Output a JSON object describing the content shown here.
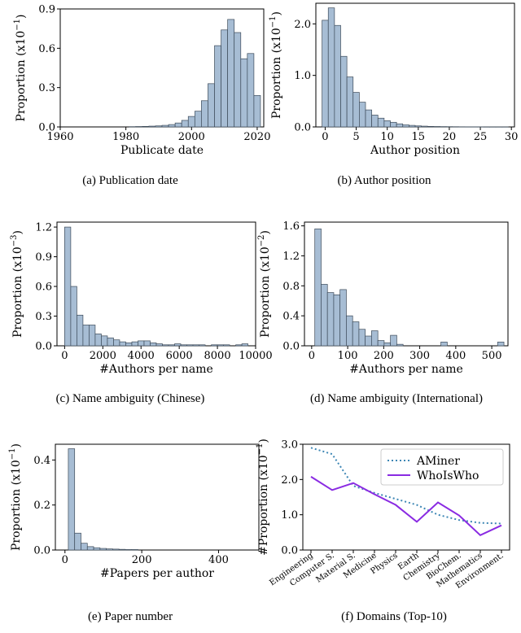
{
  "colors": {
    "bar_fill": "#a7bdd4",
    "bar_stroke": "#3c4a59",
    "aminer": "#3e87b5",
    "whoiswho": "#8a2be2"
  },
  "chart_data": [
    {
      "id": "a",
      "type": "bar",
      "caption": "(a)  Publication date",
      "xlabel": "Publicate date",
      "ylabel": "Proportion (x10",
      "ylabel_exp": "−1",
      "xlim": [
        1960,
        2022
      ],
      "ylim": [
        0,
        0.9
      ],
      "xticks": [
        1960,
        1980,
        2000,
        2020
      ],
      "yticks": [
        "0.0",
        "0.3",
        "0.6",
        "0.9"
      ],
      "bin_width": 2,
      "x": [
        1982,
        1984,
        1986,
        1988,
        1990,
        1992,
        1994,
        1996,
        1998,
        2000,
        2002,
        2004,
        2006,
        2008,
        2010,
        2012,
        2014,
        2016,
        2018,
        2020
      ],
      "values": [
        0.002,
        0.003,
        0.004,
        0.006,
        0.008,
        0.012,
        0.018,
        0.03,
        0.05,
        0.08,
        0.12,
        0.2,
        0.33,
        0.62,
        0.74,
        0.82,
        0.72,
        0.52,
        0.56,
        0.24
      ]
    },
    {
      "id": "b",
      "type": "bar",
      "caption": "(b)  Author position",
      "xlabel": "Author position",
      "ylabel": "Proportion (x10",
      "ylabel_exp": "−1",
      "xlim": [
        -1.5,
        30.5
      ],
      "ylim": [
        0,
        2.4
      ],
      "xticks": [
        0,
        5,
        10,
        15,
        20,
        25,
        30
      ],
      "yticks": [
        "0.0",
        "1.0",
        "2.0"
      ],
      "bin_width": 1,
      "x": [
        0,
        1,
        2,
        3,
        4,
        5,
        6,
        7,
        8,
        9,
        10,
        11,
        12,
        13,
        14,
        15,
        16,
        17,
        18,
        19,
        20,
        21,
        22,
        23,
        24,
        25,
        26,
        27,
        28,
        29
      ],
      "values": [
        2.07,
        2.31,
        1.97,
        1.37,
        0.97,
        0.67,
        0.48,
        0.33,
        0.23,
        0.17,
        0.12,
        0.09,
        0.06,
        0.04,
        0.03,
        0.02,
        0.015,
        0.01,
        0.008,
        0.006,
        0.005,
        0.004,
        0.003,
        0.002,
        0.002,
        0.002,
        0.001,
        0.001,
        0.001,
        0.001
      ]
    },
    {
      "id": "c",
      "type": "bar",
      "caption": "(c)  Name ambiguity (Chinese)",
      "xlabel": "#Authors per name",
      "ylabel": "Proportion (x10",
      "ylabel_exp": "−3",
      "xlim": [
        -400,
        10000
      ],
      "ylim": [
        0,
        1.25
      ],
      "xticks": [
        0,
        2000,
        4000,
        6000,
        8000,
        10000
      ],
      "yticks": [
        "0.0",
        "0.3",
        "0.6",
        "0.9",
        "1.2"
      ],
      "bin_width": 320,
      "x": [
        160,
        480,
        800,
        1120,
        1440,
        1760,
        2080,
        2400,
        2720,
        3040,
        3360,
        3680,
        4000,
        4320,
        4640,
        4960,
        5280,
        5600,
        5920,
        6240,
        6560,
        6880,
        7200,
        7520,
        7840,
        8160,
        8480,
        8800,
        9120,
        9440
      ],
      "values": [
        1.2,
        0.6,
        0.31,
        0.21,
        0.21,
        0.12,
        0.1,
        0.08,
        0.06,
        0.04,
        0.03,
        0.04,
        0.05,
        0.05,
        0.03,
        0.02,
        0.01,
        0.01,
        0.02,
        0.01,
        0.01,
        0.01,
        0.01,
        0.0,
        0.01,
        0.01,
        0.01,
        0.0,
        0.01,
        0.02
      ]
    },
    {
      "id": "d",
      "type": "bar",
      "caption": "(d)  Name ambiguity (International)",
      "xlabel": "#Authors per name",
      "ylabel": "Proportion (x10",
      "ylabel_exp": "−2",
      "xlim": [
        -20,
        545
      ],
      "ylim": [
        0,
        1.65
      ],
      "xticks": [
        0,
        100,
        200,
        300,
        400,
        500
      ],
      "yticks": [
        "0.0",
        "0.4",
        "0.8",
        "1.2",
        "1.6"
      ],
      "bin_width": 17.6,
      "x": [
        17.5,
        35,
        52.5,
        70,
        87.5,
        105,
        122.5,
        140,
        157.5,
        175,
        192.5,
        210,
        227.5,
        245,
        262.5,
        280,
        297.5,
        315,
        332.5,
        350,
        367.5,
        385,
        402.5,
        420,
        437.5,
        455,
        472.5,
        490,
        507.5,
        525
      ],
      "values": [
        1.56,
        0.82,
        0.71,
        0.68,
        0.75,
        0.4,
        0.32,
        0.22,
        0.13,
        0.2,
        0.07,
        0.04,
        0.14,
        0.02,
        0.0,
        0.0,
        0.0,
        0.0,
        0.0,
        0.0,
        0.05,
        0.0,
        0.0,
        0.0,
        0.0,
        0.0,
        0.0,
        0.0,
        0.0,
        0.05
      ]
    },
    {
      "id": "e",
      "type": "bar",
      "caption": "(e)  Paper number",
      "xlabel": "#Papers per author",
      "ylabel": "Proportion (x10",
      "ylabel_exp": "−1",
      "xlim": [
        -25,
        505
      ],
      "ylim": [
        0,
        0.47
      ],
      "xticks": [
        0,
        200,
        400
      ],
      "yticks": [
        "0.0",
        "0.2",
        "0.4"
      ],
      "bin_width": 16.5,
      "x": [
        17,
        33.5,
        50,
        66.5,
        83,
        99.5,
        116,
        132.5,
        149,
        165.5,
        182
      ],
      "values": [
        0.45,
        0.075,
        0.03,
        0.015,
        0.01,
        0.007,
        0.005,
        0.004,
        0.003,
        0.002,
        0.002
      ]
    },
    {
      "id": "f",
      "type": "line",
      "caption": "(f)  Domains (Top-10)",
      "ylabel": "#Proportion (x10",
      "ylabel_exp": "−1",
      "ylim": [
        0,
        3.0
      ],
      "yticks": [
        "0.0",
        "1.0",
        "2.0",
        "3.0"
      ],
      "legend_position": "top-right",
      "categories": [
        "Engineering",
        "Computer S.",
        "Material S.",
        "Medicine",
        "Physics",
        "Earth",
        "Chemistry",
        "BioChem.",
        "Mathematics",
        "Environment."
      ],
      "series": [
        {
          "name": "AMiner",
          "style": "dotted",
          "values": [
            2.9,
            2.72,
            1.82,
            1.62,
            1.45,
            1.28,
            1.0,
            0.85,
            0.77,
            0.75
          ]
        },
        {
          "name": "WhoIsWho",
          "style": "solid",
          "values": [
            2.08,
            1.7,
            1.9,
            1.58,
            1.28,
            0.8,
            1.35,
            0.98,
            0.42,
            0.7
          ]
        }
      ]
    }
  ]
}
